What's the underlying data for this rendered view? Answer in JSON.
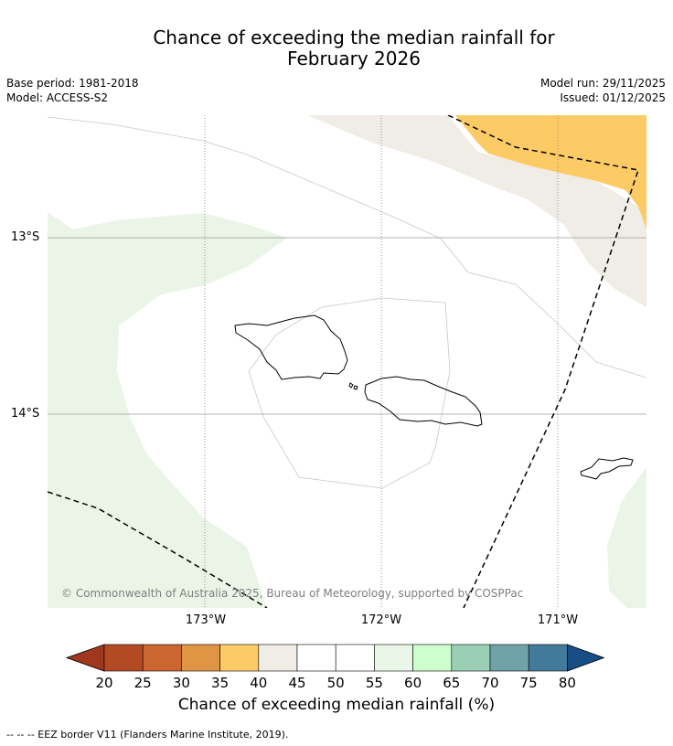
{
  "title_line1": "Chance of exceeding the median rainfall for",
  "title_line2": "February 2026",
  "meta": {
    "base_period": "Base period: 1981-2018",
    "model": "Model: ACCESS-S2",
    "model_run": "Model run: 29/11/2025",
    "issued": "Issued: 01/12/2025"
  },
  "axes": {
    "lat_labels": [
      "13°S",
      "14°S"
    ],
    "lon_labels": [
      "173°W",
      "172°W",
      "171°W"
    ]
  },
  "copyright": "© Commonwealth of Australia 2025, Bureau of Meteorology, supported by COSPPac",
  "colorbar": {
    "title": "Chance of exceeding median rainfall (%)",
    "ticks": [
      "20",
      "25",
      "30",
      "35",
      "40",
      "45",
      "50",
      "55",
      "60",
      "65",
      "70",
      "75",
      "80"
    ],
    "colors": [
      "#a0381f",
      "#b44a24",
      "#cc6530",
      "#e09545",
      "#fdcb66",
      "#f0ece6",
      "#ffffff",
      "#ffffff",
      "#eaf7e8",
      "#ccffcc",
      "#9bcfb5",
      "#6fa3a8",
      "#417a9b",
      "#174e86"
    ]
  },
  "footnote": "--  --  -- EEZ border V11 (Flanders Marine Institute, 2019)."
}
